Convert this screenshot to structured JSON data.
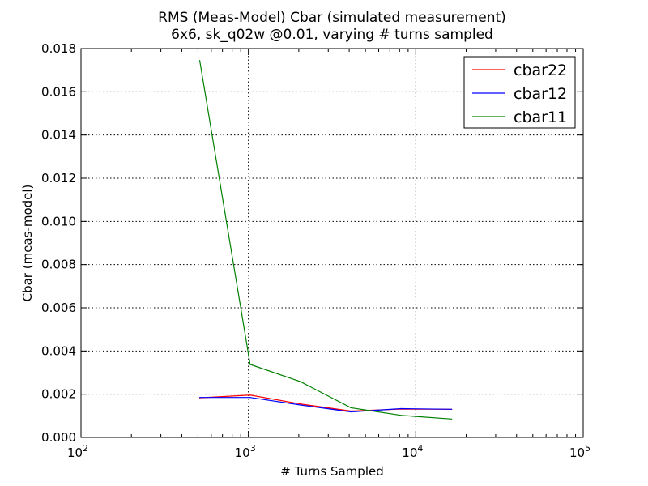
{
  "chart_data": {
    "type": "line",
    "title": "RMS (Meas-Model) Cbar (simulated measurement)",
    "subtitle": "6x6, sk_q02w @0.01, varying # turns sampled",
    "xlabel": "# Turns Sampled",
    "ylabel": "Cbar (meas-model)",
    "xscale": "log",
    "xlim": [
      100,
      100000
    ],
    "ylim": [
      0,
      0.018
    ],
    "grid": true,
    "legend_position": "top-right",
    "x_ticks": [
      {
        "value": 100,
        "base": "10",
        "exp": "2"
      },
      {
        "value": 1000,
        "base": "10",
        "exp": "3"
      },
      {
        "value": 10000,
        "base": "10",
        "exp": "4"
      },
      {
        "value": 100000,
        "base": "10",
        "exp": "5"
      }
    ],
    "y_ticks": [
      {
        "value": 0.0,
        "label": "0.000"
      },
      {
        "value": 0.002,
        "label": "0.002"
      },
      {
        "value": 0.004,
        "label": "0.004"
      },
      {
        "value": 0.006,
        "label": "0.006"
      },
      {
        "value": 0.008,
        "label": "0.008"
      },
      {
        "value": 0.01,
        "label": "0.010"
      },
      {
        "value": 0.012,
        "label": "0.012"
      },
      {
        "value": 0.014,
        "label": "0.014"
      },
      {
        "value": 0.016,
        "label": "0.016"
      },
      {
        "value": 0.018,
        "label": "0.018"
      }
    ],
    "x": [
      512,
      1024,
      2048,
      4096,
      8192,
      16384
    ],
    "series": [
      {
        "name": "cbar22",
        "color": "#ff0000",
        "values": [
          0.00183,
          0.00196,
          0.00155,
          0.00122,
          0.00131,
          0.0013
        ]
      },
      {
        "name": "cbar12",
        "color": "#0000ff",
        "values": [
          0.00185,
          0.00185,
          0.0015,
          0.00118,
          0.00133,
          0.0013
        ]
      },
      {
        "name": "cbar11",
        "color": "#008000",
        "values": [
          0.01745,
          0.00338,
          0.00258,
          0.00137,
          0.00102,
          0.00085
        ]
      }
    ]
  }
}
